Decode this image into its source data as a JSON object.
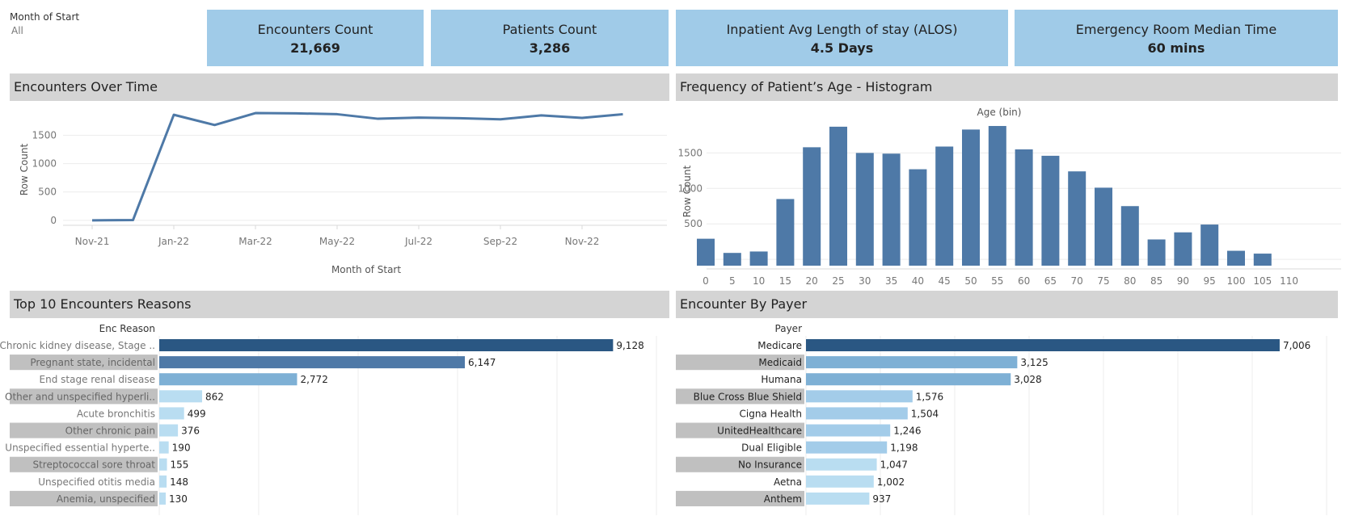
{
  "filter": {
    "label": "Month of Start",
    "value": "All"
  },
  "kpis": [
    {
      "title": "Encounters Count",
      "value": "21,669"
    },
    {
      "title": "Patients Count",
      "value": "3,286"
    },
    {
      "title": "Inpatient Avg Length of stay (ALOS)",
      "value": "4.5 Days"
    },
    {
      "title": "Emergency Room Median Time",
      "value": "60 mins"
    }
  ],
  "panels": {
    "over_time": "Encounters Over Time",
    "histogram": "Frequency of Patient’s Age - Histogram",
    "reasons": "Top 10 Encounters Reasons",
    "payer": "Encounter By Payer"
  },
  "colors": {
    "line": "#4e79a7",
    "hist_bar": "#4e79a7",
    "header_bg": "#d4d4d4",
    "kpi_bg": "#a0cbe8",
    "bar_scale": [
      "#2a5783",
      "#4e79a7",
      "#7eb0d5",
      "#a3cce9",
      "#b9ddf1"
    ]
  },
  "chart_data": [
    {
      "id": "over_time",
      "type": "line",
      "title": "Encounters Over Time",
      "xlabel": "Month of Start",
      "ylabel": "Row Count",
      "x": [
        "Nov-21",
        "Dec-21",
        "Jan-22",
        "Feb-22",
        "Mar-22",
        "Apr-22",
        "May-22",
        "Jun-22",
        "Jul-22",
        "Aug-22",
        "Sep-22",
        "Oct-22",
        "Nov-22",
        "Dec-22"
      ],
      "x_ticks": [
        "Nov-21",
        "Jan-22",
        "Mar-22",
        "May-22",
        "Jul-22",
        "Sep-22",
        "Nov-22"
      ],
      "values": [
        0,
        5,
        1860,
        1680,
        1890,
        1885,
        1870,
        1790,
        1810,
        1800,
        1780,
        1850,
        1805,
        1870
      ],
      "y_ticks": [
        0,
        500,
        1000,
        1500
      ],
      "ylim": [
        -30,
        1990
      ]
    },
    {
      "id": "histogram",
      "type": "bar",
      "title": "Frequency of Patient’s Age - Histogram",
      "xlabel": "Age (bin)",
      "ylabel": "Row Count",
      "categories": [
        "0",
        "5",
        "10",
        "15",
        "20",
        "25",
        "30",
        "35",
        "40",
        "45",
        "50",
        "55",
        "60",
        "65",
        "70",
        "75",
        "80",
        "85",
        "90",
        "95",
        "100",
        "105",
        "110"
      ],
      "values": [
        290,
        90,
        110,
        850,
        1580,
        1870,
        1500,
        1490,
        1270,
        1590,
        1830,
        1880,
        1550,
        1460,
        1240,
        1010,
        750,
        280,
        380,
        490,
        120,
        80,
        0
      ],
      "y_ticks": [
        0,
        500,
        1000,
        1500
      ],
      "ylim": [
        -90,
        1960
      ]
    },
    {
      "id": "reasons",
      "type": "bar",
      "orientation": "horizontal",
      "title": "Top 10 Encounters Reasons",
      "row_header": "Enc Reason",
      "categories": [
        "Chronic kidney disease, Stage ..",
        "Pregnant state, incidental",
        "End stage renal disease",
        "Other and unspecified hyperli..",
        "Acute bronchitis",
        "Other chronic pain",
        "Unspecified essential hyperte..",
        "Streptococcal sore throat",
        "Unspecified otitis media",
        "Anemia, unspecified"
      ],
      "values": [
        9128,
        6147,
        2772,
        862,
        499,
        376,
        190,
        155,
        148,
        130
      ],
      "value_labels": [
        "9,128",
        "6,147",
        "2,772",
        "862",
        "499",
        "376",
        "190",
        "155",
        "148",
        "130"
      ],
      "xlim": [
        0,
        10000
      ]
    },
    {
      "id": "payer",
      "type": "bar",
      "orientation": "horizontal",
      "title": "Encounter By Payer",
      "row_header": "Payer",
      "categories": [
        "Medicare",
        "Medicaid",
        "Humana",
        "Blue Cross Blue Shield",
        "Cigna Health",
        "UnitedHealthcare",
        "Dual Eligible",
        "No Insurance",
        "Aetna",
        "Anthem"
      ],
      "values": [
        7006,
        3125,
        3028,
        1576,
        1504,
        1246,
        1198,
        1047,
        1002,
        937
      ],
      "value_labels": [
        "7,006",
        "3,125",
        "3,028",
        "1,576",
        "1,504",
        "1,246",
        "1,198",
        "1,047",
        "1,002",
        "937"
      ],
      "xlim": [
        0,
        7700
      ]
    }
  ]
}
